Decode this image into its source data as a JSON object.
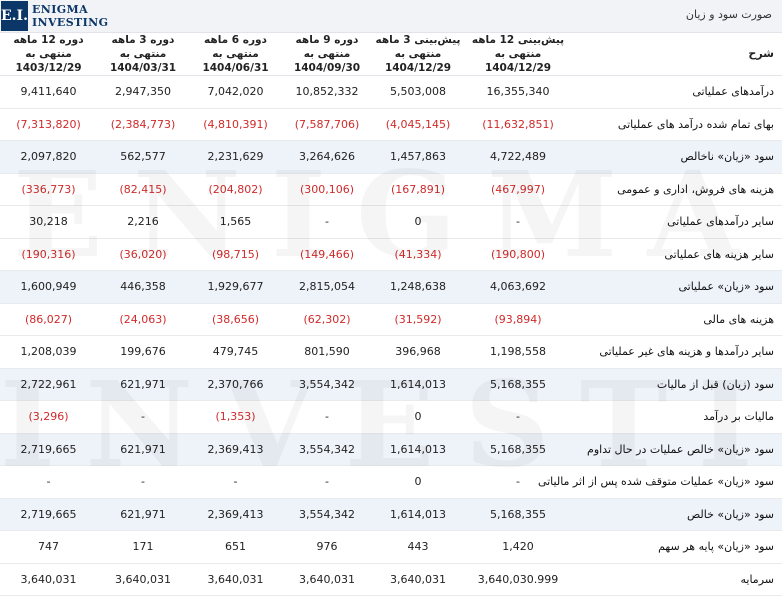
{
  "page": {
    "title": "صورت سود و زیان"
  },
  "logo": {
    "badge": "E.I.",
    "line1": "ENIGMA",
    "line2": "INVESTING",
    "watermark1": "ENIGMA",
    "watermark2": "INVESTING"
  },
  "table": {
    "label_header": "شرح",
    "columns": [
      {
        "line1": "پیش‌بینی 12 ماهه منتهی به",
        "line2": "1404/12/29"
      },
      {
        "line1": "پیش‌بینی 3 ماهه منتهی به",
        "line2": "1404/12/29"
      },
      {
        "line1": "دوره 9 ماهه منتهی به",
        "line2": "1404/09/30"
      },
      {
        "line1": "دوره 6 ماهه منتهی به",
        "line2": "1404/06/31"
      },
      {
        "line1": "دوره 3 ماهه منتهی به",
        "line2": "1404/03/31"
      },
      {
        "line1": "دوره 12 ماهه منتهی به",
        "line2": "1403/12/29"
      }
    ],
    "rows": [
      {
        "label": "درآمدهای عملیاتی",
        "hl": false,
        "values": [
          "16,355,340",
          "5,503,008",
          "10,852,332",
          "7,042,020",
          "2,947,350",
          "9,411,640"
        ]
      },
      {
        "label": "بهای تمام شده درآمد های عملیاتی",
        "hl": false,
        "values": [
          "(11,632,851)",
          "(4,045,145)",
          "(7,587,706)",
          "(4,810,391)",
          "(2,384,773)",
          "(7,313,820)"
        ]
      },
      {
        "label": "سود «زیان» ناخالص",
        "hl": true,
        "values": [
          "4,722,489",
          "1,457,863",
          "3,264,626",
          "2,231,629",
          "562,577",
          "2,097,820"
        ]
      },
      {
        "label": "هزینه های فروش، اداری و عمومی",
        "hl": false,
        "values": [
          "(467,997)",
          "(167,891)",
          "(300,106)",
          "(204,802)",
          "(82,415)",
          "(336,773)"
        ]
      },
      {
        "label": "سایر درآمدهای عملیاتی",
        "hl": false,
        "values": [
          "-",
          "0",
          "-",
          "1,565",
          "2,216",
          "30,218"
        ]
      },
      {
        "label": "سایر هزینه های عملیاتی",
        "hl": false,
        "values": [
          "(190,800)",
          "(41,334)",
          "(149,466)",
          "(98,715)",
          "(36,020)",
          "(190,316)"
        ]
      },
      {
        "label": "سود «زیان» عملیاتی",
        "hl": true,
        "values": [
          "4,063,692",
          "1,248,638",
          "2,815,054",
          "1,929,677",
          "446,358",
          "1,600,949"
        ]
      },
      {
        "label": "هزینه های مالی",
        "hl": false,
        "values": [
          "(93,894)",
          "(31,592)",
          "(62,302)",
          "(38,656)",
          "(24,063)",
          "(86,027)"
        ]
      },
      {
        "label": "سایر درآمدها و هزینه های غیر عملیاتی",
        "hl": false,
        "values": [
          "1,198,558",
          "396,968",
          "801,590",
          "479,745",
          "199,676",
          "1,208,039"
        ]
      },
      {
        "label": "سود (زیان) قبل از مالیات",
        "hl": true,
        "values": [
          "5,168,355",
          "1,614,013",
          "3,554,342",
          "2,370,766",
          "621,971",
          "2,722,961"
        ]
      },
      {
        "label": "مالیات بر درآمد",
        "hl": false,
        "values": [
          "-",
          "0",
          "-",
          "(1,353)",
          "-",
          "(3,296)"
        ]
      },
      {
        "label": "سود «زیان» خالص عملیات در حال تداوم",
        "hl": true,
        "values": [
          "5,168,355",
          "1,614,013",
          "3,554,342",
          "2,369,413",
          "621,971",
          "2,719,665"
        ]
      },
      {
        "label": "سود «زیان» عملیات متوقف شده پس از اثر مالیاتی",
        "hl": false,
        "values": [
          "-",
          "0",
          "-",
          "-",
          "-",
          "-"
        ]
      },
      {
        "label": "سود «زیان» خالص",
        "hl": true,
        "values": [
          "5,168,355",
          "1,614,013",
          "3,554,342",
          "2,369,413",
          "621,971",
          "2,719,665"
        ]
      },
      {
        "label": "سود «زیان» پایه هر سهم",
        "hl": false,
        "values": [
          "1,420",
          "443",
          "976",
          "651",
          "171",
          "747"
        ]
      },
      {
        "label": "سرمایه",
        "hl": false,
        "values": [
          "3,640,030.999",
          "3,640,031",
          "3,640,031",
          "3,640,031",
          "3,640,031",
          "3,640,031"
        ]
      }
    ]
  }
}
